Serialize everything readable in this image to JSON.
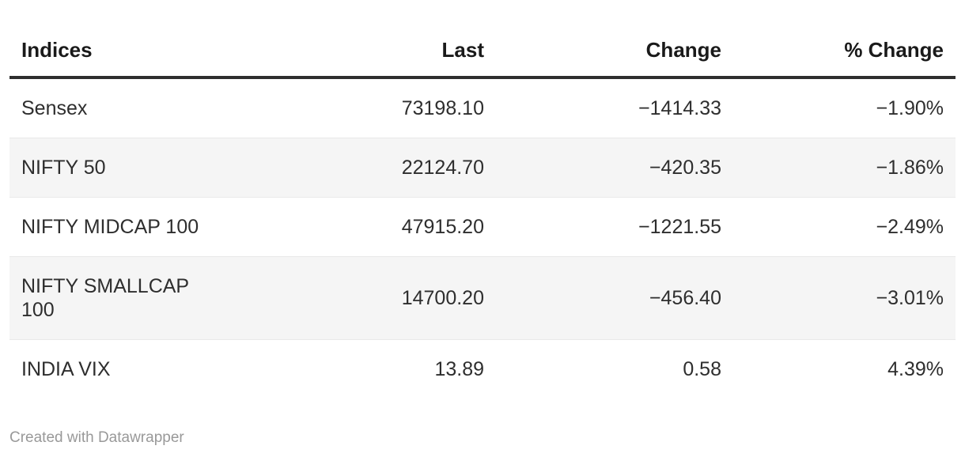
{
  "colors": {
    "page_background": "#ffffff",
    "header_text": "#1a1a1a",
    "body_text": "#2e2e2e",
    "header_rule": "#2e2e2e",
    "zebra_row_bg": "#f5f5f5",
    "row_border": "#e9e9e9",
    "footer_text": "#999999"
  },
  "table": {
    "columns": [
      {
        "label": "Indices",
        "align": "left"
      },
      {
        "label": "Last",
        "align": "right"
      },
      {
        "label": "Change",
        "align": "right"
      },
      {
        "label": "% Change",
        "align": "right"
      }
    ],
    "rows": [
      {
        "cells": [
          "Sensex",
          "73198.10",
          "−1414.33",
          "−1.90%"
        ]
      },
      {
        "cells": [
          "NIFTY 50",
          "22124.70",
          "−420.35",
          "−1.86%"
        ]
      },
      {
        "cells": [
          "NIFTY MIDCAP 100",
          "47915.20",
          "−1221.55",
          "−2.49%"
        ]
      },
      {
        "cells": [
          "NIFTY SMALLCAP 100",
          "14700.20",
          "−456.40",
          "−3.01%"
        ]
      },
      {
        "cells": [
          "INDIA VIX",
          "13.89",
          "0.58",
          "4.39%"
        ]
      }
    ]
  },
  "footer": {
    "attribution": "Created with Datawrapper"
  },
  "chart_data": {
    "type": "table",
    "columns": [
      "Indices",
      "Last",
      "Change",
      "% Change"
    ],
    "rows": [
      [
        "Sensex",
        73198.1,
        -1414.33,
        -1.9
      ],
      [
        "NIFTY 50",
        22124.7,
        -420.35,
        -1.86
      ],
      [
        "NIFTY MIDCAP 100",
        47915.2,
        -1221.55,
        -2.49
      ],
      [
        "NIFTY SMALLCAP 100",
        14700.2,
        -456.4,
        -3.01
      ],
      [
        "INDIA VIX",
        13.89,
        0.58,
        4.39
      ]
    ],
    "title": "",
    "notes": "Datawrapper responsive table; negative values use Unicode minus; zebra striping on alternate rows"
  }
}
